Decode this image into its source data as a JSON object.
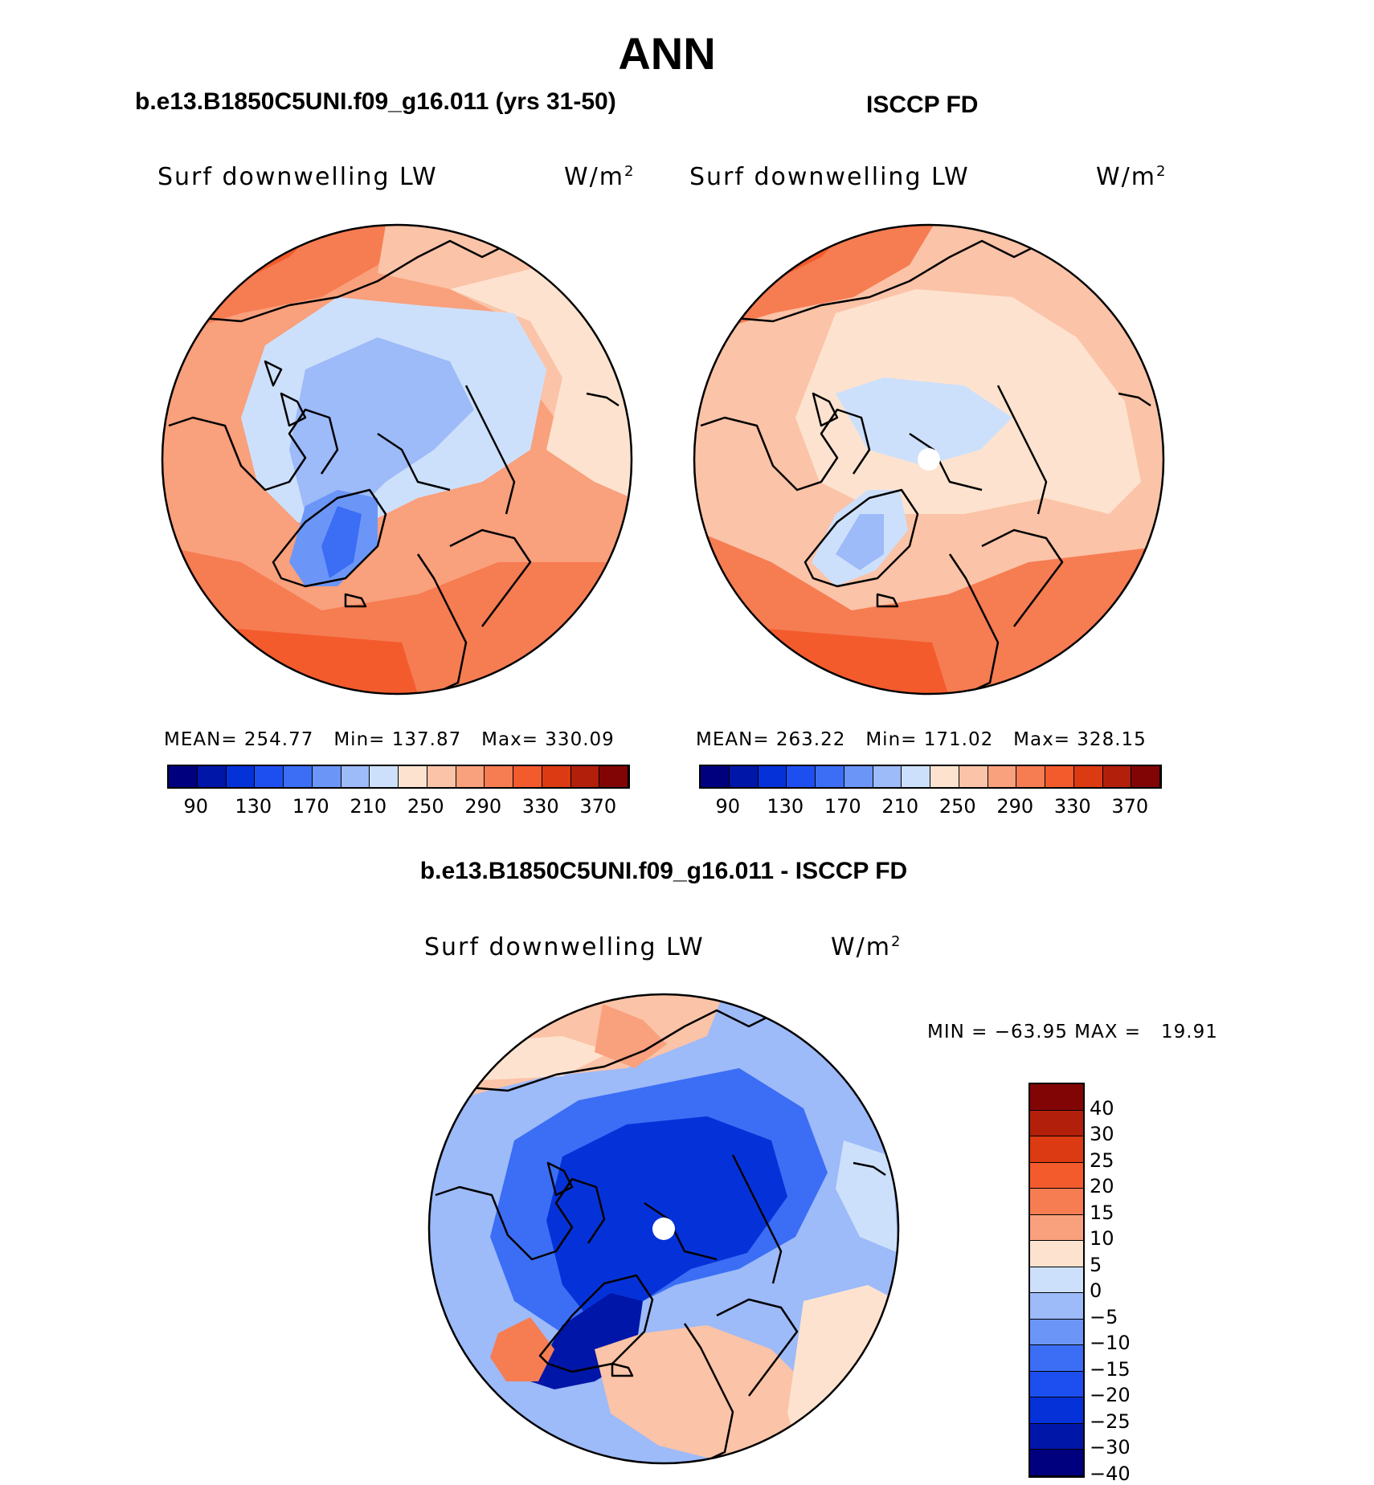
{
  "figure": {
    "title": "ANN",
    "panel_left_title": "b.e13.B1850C5UNI.f09_g16.011 (yrs 31-50)",
    "panel_right_title": "ISCCP FD",
    "panel_diff_title": "b.e13.B1850C5UNI.f09_g16.011 - ISCCP FD"
  },
  "panels": [
    {
      "name": "model",
      "variable": "Surf downwelling LW",
      "units": "W/m",
      "units_sup": "2",
      "mean_label": "MEAN=",
      "mean": "254.77",
      "min_label": "Min=",
      "min": "137.87",
      "max_label": "Max=",
      "max": "330.09"
    },
    {
      "name": "obs",
      "variable": "Surf downwelling LW",
      "units": "W/m",
      "units_sup": "2",
      "mean_label": "MEAN=",
      "mean": "263.22",
      "min_label": "Min=",
      "min": "171.02",
      "max_label": "Max=",
      "max": "328.15"
    },
    {
      "name": "difference",
      "variable": "Surf downwelling LW",
      "units": "W/m",
      "units_sup": "2",
      "minmax_text": "MIN = −63.95 MAX =   19.91"
    }
  ],
  "colorbar_abs": {
    "colors": [
      "#00007f",
      "#0016a8",
      "#0532d8",
      "#1d4ff0",
      "#3b6ef5",
      "#6b96f7",
      "#9dbaf9",
      "#cde0fb",
      "#fde3cf",
      "#fbc3a7",
      "#f9a07c",
      "#f67c52",
      "#f35b2d",
      "#dc3a12",
      "#b21f0a",
      "#820505"
    ],
    "ticks": [
      "90",
      "130",
      "170",
      "210",
      "250",
      "290",
      "330",
      "370"
    ]
  },
  "colorbar_diff": {
    "colors": [
      "#820505",
      "#b21f0a",
      "#dc3a12",
      "#f35b2d",
      "#f67c52",
      "#f9a07c",
      "#fde3cf",
      "#cde0fb",
      "#9dbaf9",
      "#6b96f7",
      "#3b6ef5",
      "#1d4ff0",
      "#0532d8",
      "#0016a8",
      "#00007f"
    ],
    "ticks": [
      "40",
      "30",
      "25",
      "20",
      "15",
      "10",
      "5",
      "0",
      "−5",
      "−10",
      "−15",
      "−20",
      "−25",
      "−30",
      "−40"
    ]
  }
}
